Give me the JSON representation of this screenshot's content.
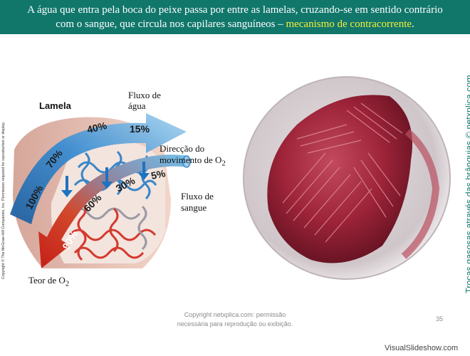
{
  "banner": {
    "line1": "A água que entra pela boca do peixe passa por entre as lamelas, cruzando-se em sentido contrário",
    "line2_a": "com o sangue, que circula nos capilares sanguíneos – ",
    "line2_highlight": "mecanismo de contracorrente",
    "line2_end": "."
  },
  "copyright_vertical": "Copyright © The McGraw-Hill Companies, Inc. Permission required for reproduction or display.",
  "diagram": {
    "lamela_label": "Lamela",
    "fluxo_agua_1": "Fluxo de",
    "fluxo_agua_2": "água",
    "direccao_1": "Direcção do",
    "direccao_2": "movimento de O",
    "direccao_sub": "2",
    "fluxo_sangue_1": "Fluxo de",
    "fluxo_sangue_2": "sangue",
    "teor_label": "Teor de O",
    "teor_sub": "2",
    "water_percentages": [
      "100%",
      "70%",
      "40%",
      "15%"
    ],
    "blood_percentages": [
      "90%",
      "60%",
      "30%",
      "5%"
    ],
    "colors": {
      "water_arrow": "#5ab0e0",
      "blood_arrow": "#d62a20",
      "capillary_blue": "#3a86c8",
      "capillary_red": "#d43a2e",
      "lamella": "#c9846c"
    }
  },
  "photo": {
    "icon": "gill-photo"
  },
  "side_caption": "Trocas gasosas através das brânquias © netxplica.com",
  "footer": {
    "copyright_1": "Copyright netxplica.com: permissão",
    "copyright_2": "necessária para reprodução ou exibição.",
    "page_number": "35",
    "watermark": "VisualSlideshow.com"
  }
}
